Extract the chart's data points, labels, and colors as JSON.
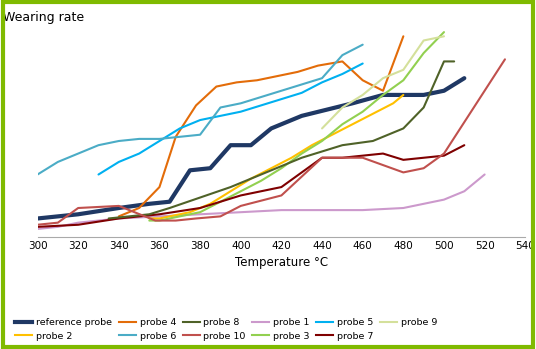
{
  "title": "Wearing rate",
  "xlabel": "Temperature °C",
  "xlim": [
    300,
    540
  ],
  "ylim": [
    0,
    1
  ],
  "xticks": [
    300,
    320,
    340,
    360,
    380,
    400,
    420,
    440,
    460,
    480,
    500,
    520,
    540
  ],
  "bg_color": "#ffffff",
  "grid_color": "#d0d0d0",
  "border_color": "#7fba00",
  "series": [
    {
      "name": "reference probe",
      "color": "#1f3864",
      "linewidth": 3.0,
      "x": [
        300,
        320,
        340,
        355,
        365,
        375,
        385,
        395,
        405,
        415,
        430,
        455,
        470,
        490,
        500,
        510
      ],
      "y": [
        0.09,
        0.11,
        0.14,
        0.16,
        0.17,
        0.32,
        0.33,
        0.44,
        0.44,
        0.52,
        0.58,
        0.64,
        0.68,
        0.68,
        0.7,
        0.76
      ]
    },
    {
      "name": "probe 1",
      "color": "#cc99cc",
      "linewidth": 1.5,
      "x": [
        300,
        310,
        320,
        340,
        360,
        380,
        400,
        420,
        440,
        460,
        480,
        500,
        510,
        520
      ],
      "y": [
        0.04,
        0.05,
        0.07,
        0.09,
        0.1,
        0.11,
        0.12,
        0.13,
        0.13,
        0.13,
        0.14,
        0.18,
        0.22,
        0.3
      ]
    },
    {
      "name": "probe 2",
      "color": "#ffc000",
      "linewidth": 1.5,
      "x": [
        355,
        360,
        365,
        375,
        385,
        395,
        405,
        415,
        425,
        435,
        445,
        455,
        465,
        475,
        480
      ],
      "y": [
        0.09,
        0.09,
        0.1,
        0.12,
        0.16,
        0.22,
        0.28,
        0.33,
        0.38,
        0.44,
        0.49,
        0.54,
        0.59,
        0.64,
        0.68
      ]
    },
    {
      "name": "probe 3",
      "color": "#92d050",
      "linewidth": 1.5,
      "x": [
        355,
        360,
        370,
        380,
        390,
        400,
        410,
        420,
        430,
        440,
        450,
        460,
        470,
        480,
        490,
        500
      ],
      "y": [
        0.08,
        0.08,
        0.1,
        0.12,
        0.17,
        0.22,
        0.27,
        0.33,
        0.4,
        0.46,
        0.54,
        0.6,
        0.68,
        0.75,
        0.88,
        0.98
      ]
    },
    {
      "name": "probe 4",
      "color": "#e36c09",
      "linewidth": 1.5,
      "x": [
        340,
        350,
        360,
        368,
        378,
        388,
        398,
        408,
        418,
        428,
        438,
        450,
        460,
        470,
        480
      ],
      "y": [
        0.1,
        0.14,
        0.24,
        0.48,
        0.63,
        0.72,
        0.74,
        0.75,
        0.77,
        0.79,
        0.82,
        0.84,
        0.75,
        0.7,
        0.96
      ]
    },
    {
      "name": "probe 5",
      "color": "#00b0f0",
      "linewidth": 1.5,
      "x": [
        330,
        340,
        350,
        360,
        370,
        380,
        390,
        400,
        410,
        420,
        430,
        440,
        450,
        460
      ],
      "y": [
        0.3,
        0.36,
        0.4,
        0.46,
        0.52,
        0.56,
        0.58,
        0.6,
        0.63,
        0.66,
        0.69,
        0.74,
        0.78,
        0.83
      ]
    },
    {
      "name": "probe 6",
      "color": "#4bacc6",
      "linewidth": 1.5,
      "x": [
        300,
        310,
        320,
        330,
        340,
        350,
        360,
        370,
        380,
        390,
        400,
        420,
        440,
        450,
        460
      ],
      "y": [
        0.3,
        0.36,
        0.4,
        0.44,
        0.46,
        0.47,
        0.47,
        0.48,
        0.49,
        0.62,
        0.64,
        0.7,
        0.76,
        0.87,
        0.92
      ]
    },
    {
      "name": "probe 7",
      "color": "#7f0000",
      "linewidth": 1.5,
      "x": [
        300,
        320,
        340,
        360,
        380,
        400,
        420,
        440,
        450,
        460,
        470,
        480,
        490,
        500,
        510
      ],
      "y": [
        0.05,
        0.06,
        0.09,
        0.11,
        0.14,
        0.2,
        0.24,
        0.38,
        0.38,
        0.39,
        0.4,
        0.37,
        0.38,
        0.39,
        0.44
      ]
    },
    {
      "name": "probe 8",
      "color": "#4f6228",
      "linewidth": 1.5,
      "x": [
        335,
        345,
        355,
        365,
        380,
        395,
        410,
        430,
        450,
        465,
        480,
        490,
        500,
        505
      ],
      "y": [
        0.09,
        0.1,
        0.11,
        0.14,
        0.19,
        0.24,
        0.3,
        0.38,
        0.44,
        0.46,
        0.52,
        0.62,
        0.84,
        0.84
      ]
    },
    {
      "name": "probe 9",
      "color": "#d4e09b",
      "linewidth": 1.5,
      "x": [
        440,
        450,
        460,
        470,
        480,
        490,
        500
      ],
      "y": [
        0.52,
        0.62,
        0.68,
        0.76,
        0.8,
        0.94,
        0.96
      ]
    },
    {
      "name": "probe 10",
      "color": "#c0504d",
      "linewidth": 1.5,
      "x": [
        300,
        310,
        320,
        340,
        358,
        368,
        378,
        390,
        400,
        420,
        440,
        460,
        480,
        490,
        500,
        510,
        520,
        530
      ],
      "y": [
        0.06,
        0.07,
        0.14,
        0.15,
        0.08,
        0.08,
        0.09,
        0.1,
        0.15,
        0.2,
        0.38,
        0.38,
        0.31,
        0.33,
        0.4,
        0.55,
        0.7,
        0.85
      ]
    }
  ],
  "legend_order": [
    "reference probe",
    "probe 2",
    "probe 4",
    "probe 6",
    "probe 8",
    "probe 10",
    "probe 1",
    "probe 3",
    "probe 5",
    "probe 7",
    "probe 9"
  ]
}
